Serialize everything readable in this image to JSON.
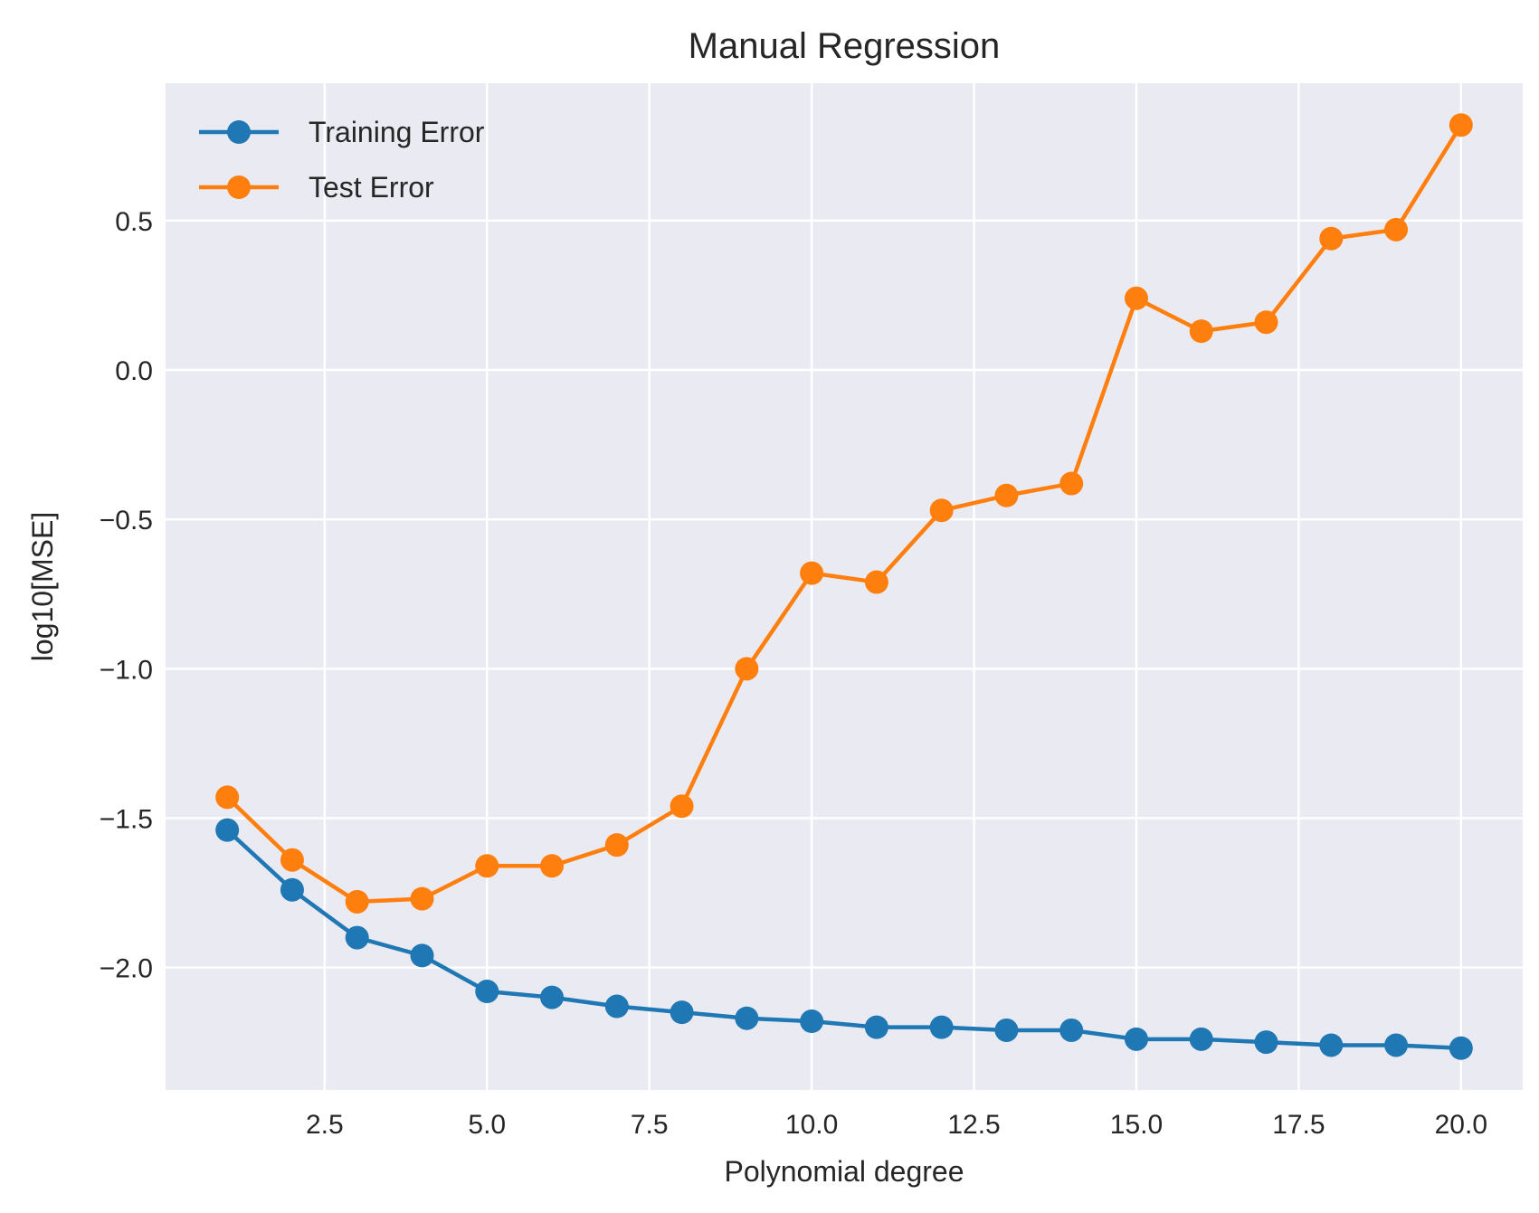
{
  "chart_data": {
    "type": "line",
    "title": "Manual Regression",
    "xlabel": "Polynomial degree",
    "ylabel": "log10[MSE]",
    "xlim": [
      0.05,
      20.95
    ],
    "ylim": [
      -2.41,
      0.96
    ],
    "xticks": [
      2.5,
      5.0,
      7.5,
      10.0,
      12.5,
      15.0,
      17.5,
      20.0
    ],
    "xtick_labels": [
      "2.5",
      "5.0",
      "7.5",
      "10.0",
      "12.5",
      "15.0",
      "17.5",
      "20.0"
    ],
    "yticks": [
      0.5,
      0.0,
      -0.5,
      -1.0,
      -1.5,
      -2.0
    ],
    "ytick_labels": [
      "0.5",
      "0.0",
      "−0.5",
      "−1.0",
      "−1.5",
      "−2.0"
    ],
    "grid": true,
    "legend_position": "top-left",
    "x": [
      1,
      2,
      3,
      4,
      5,
      6,
      7,
      8,
      9,
      10,
      11,
      12,
      13,
      14,
      15,
      16,
      17,
      18,
      19,
      20
    ],
    "series": [
      {
        "name": "Training Error",
        "color": "#1f77b4",
        "values": [
          -1.54,
          -1.74,
          -1.9,
          -1.96,
          -2.08,
          -2.1,
          -2.13,
          -2.15,
          -2.17,
          -2.18,
          -2.2,
          -2.2,
          -2.21,
          -2.21,
          -2.24,
          -2.24,
          -2.25,
          -2.26,
          -2.26,
          -2.27
        ]
      },
      {
        "name": "Test Error",
        "color": "#ff7f0e",
        "values": [
          -1.43,
          -1.64,
          -1.78,
          -1.77,
          -1.66,
          -1.66,
          -1.59,
          -1.46,
          -1.0,
          -0.68,
          -0.71,
          -0.47,
          -0.42,
          -0.38,
          0.24,
          0.13,
          0.16,
          0.44,
          0.47,
          0.82
        ]
      }
    ],
    "colors": {
      "plot_background": "#eaeaf2",
      "grid": "#ffffff",
      "text": "#262626"
    }
  }
}
